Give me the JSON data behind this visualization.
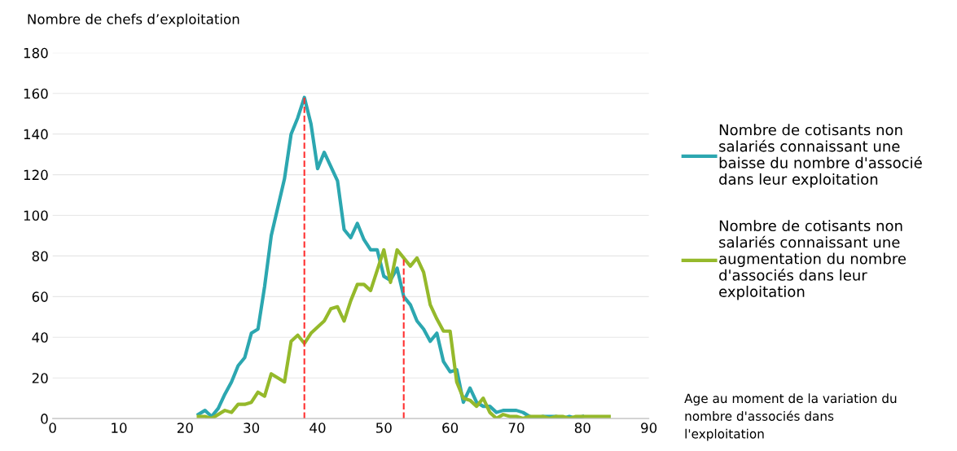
{
  "chart_data": {
    "type": "line",
    "ylabel": "Nombre de chefs d’exploitation",
    "xlabel": "Age au moment de la variation du nombre d'associés dans l'exploitation",
    "x": [
      22,
      23,
      24,
      25,
      26,
      27,
      28,
      29,
      30,
      31,
      32,
      33,
      34,
      35,
      36,
      37,
      38,
      39,
      40,
      41,
      42,
      43,
      44,
      45,
      46,
      47,
      48,
      49,
      50,
      51,
      52,
      53,
      54,
      55,
      56,
      57,
      58,
      59,
      60,
      61,
      62,
      63,
      64,
      65,
      66,
      67,
      68,
      69,
      70,
      71,
      72,
      73,
      74,
      75,
      76,
      77,
      78,
      79,
      80,
      81,
      82,
      83,
      84
    ],
    "series": [
      {
        "name": "Nombre de cotisants non salariés connaissant une baisse du nombre d'associé dans leur exploitation",
        "color": "#2ca7b0",
        "values": [
          2,
          4,
          1,
          5,
          12,
          18,
          26,
          30,
          42,
          44,
          65,
          90,
          104,
          118,
          140,
          148,
          158,
          145,
          123,
          131,
          124,
          117,
          93,
          89,
          96,
          88,
          83,
          83,
          70,
          68,
          74,
          60,
          56,
          48,
          44,
          38,
          42,
          28,
          23,
          24,
          8,
          15,
          8,
          6,
          6,
          3,
          4,
          4,
          4,
          3,
          1,
          0,
          1,
          1,
          1,
          0,
          1,
          0,
          1,
          null,
          null,
          null,
          null
        ]
      },
      {
        "name": "Nombre de cotisants non salariés connaissant une augmentation du nombre d'associés dans leur exploitation",
        "color": "#95b92b",
        "values": [
          1,
          1,
          0,
          2,
          4,
          3,
          7,
          7,
          8,
          13,
          11,
          22,
          20,
          18,
          38,
          41,
          37,
          42,
          45,
          48,
          54,
          55,
          48,
          58,
          66,
          66,
          63,
          73,
          83,
          67,
          83,
          79,
          75,
          79,
          72,
          56,
          49,
          43,
          43,
          18,
          10,
          9,
          6,
          10,
          3,
          0,
          2,
          1,
          1,
          0,
          1,
          1,
          1,
          0,
          1,
          1,
          0,
          1,
          1,
          1,
          1,
          1,
          1
        ]
      }
    ],
    "xlim": [
      0,
      90
    ],
    "xticks": [
      0,
      10,
      20,
      30,
      40,
      50,
      60,
      70,
      80,
      90
    ],
    "ylim": [
      0,
      180
    ],
    "yticks": [
      0,
      20,
      40,
      60,
      80,
      100,
      120,
      140,
      160,
      180
    ],
    "ref_lines": [
      {
        "axis": "x",
        "value": 38,
        "color": "#ff3030",
        "line_style": "dashed"
      },
      {
        "axis": "x",
        "value": 53,
        "color": "#ff3030",
        "line_style": "dashed"
      }
    ],
    "grid": "y",
    "legend": "right",
    "marker": "none",
    "line_style": "solid"
  }
}
